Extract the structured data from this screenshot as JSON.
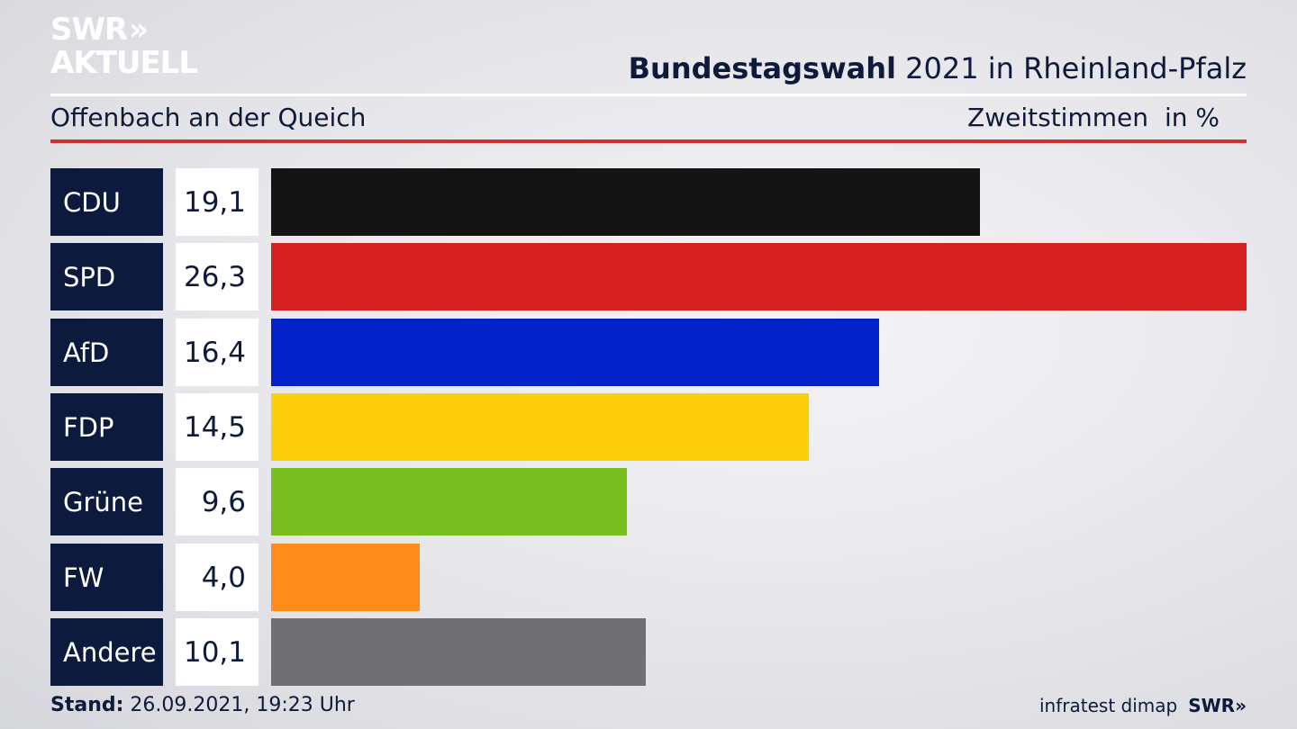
{
  "brand": {
    "line1": "SWR",
    "line2": "AKTUELL",
    "chevrons": "»"
  },
  "header": {
    "title_bold": "Bundestagswahl",
    "title_rest": "2021 in Rheinland-Pfalz",
    "region": "Offenbach an der Queich",
    "measure": "Zweitstimmen",
    "unit": "in %"
  },
  "footer": {
    "stand_label": "Stand:",
    "stand_value": "26.09.2021, 19:23 Uhr",
    "source": "infratest dimap",
    "broadcaster": "SWR",
    "broadcaster_chevrons": "»"
  },
  "chart_data": {
    "type": "bar",
    "orientation": "horizontal",
    "title": "Bundestagswahl 2021 in Rheinland-Pfalz",
    "subtitle": "Offenbach an der Queich",
    "xlabel": "Zweitstimmen in %",
    "ylabel": "",
    "xlim": [
      0,
      26.3
    ],
    "grid": false,
    "categories": [
      "CDU",
      "SPD",
      "AfD",
      "FDP",
      "Grüne",
      "FW",
      "Andere"
    ],
    "values": [
      19.1,
      26.3,
      16.4,
      14.5,
      9.6,
      4.0,
      10.1
    ],
    "value_labels": [
      "19,1",
      "26,3",
      "16,4",
      "14,5",
      "9,6",
      "4,0",
      "10,1"
    ],
    "colors": [
      "#141414",
      "#d62020",
      "#0022c8",
      "#fccf0a",
      "#78be1e",
      "#ff8c1a",
      "#707073"
    ]
  }
}
